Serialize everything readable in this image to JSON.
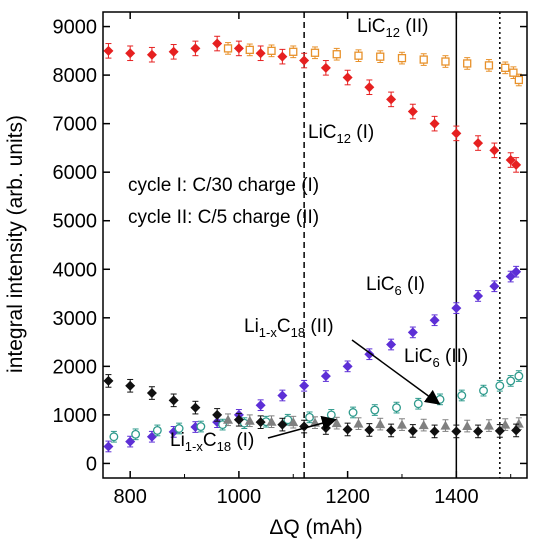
{
  "chart_data": {
    "type": "scatter",
    "xlabel": "ΔQ (mAh)",
    "ylabel": "integral intensity (arb. units)",
    "xlim": [
      750,
      1530
    ],
    "ylim": [
      -300,
      9300
    ],
    "xticks": [
      800,
      1000,
      1200,
      1400
    ],
    "yticks": [
      0,
      1000,
      2000,
      3000,
      4000,
      5000,
      6000,
      7000,
      8000,
      9000
    ],
    "vertical_lines": [
      {
        "x": 1120,
        "style": "dashed"
      },
      {
        "x": 1400,
        "style": "solid"
      },
      {
        "x": 1480,
        "style": "dotted"
      }
    ],
    "annotations": {
      "cycle_i": "cycle I:  C/30 charge (I)",
      "cycle_ii": "cycle II: C/5 charge (II)",
      "lic12_ii": {
        "main": "LiC",
        "sub": "12",
        "tail": " (II)"
      },
      "lic12_i": {
        "main": "LiC",
        "sub": "12",
        "tail": " (I)"
      },
      "lic6_i": {
        "main": "LiC",
        "sub": "6",
        "tail": " (I)"
      },
      "lic6_ii": {
        "main": "LiC",
        "sub": "6",
        "tail": " (II)"
      },
      "li1xc18_ii": {
        "a": "Li",
        "sub1": "1-x",
        "b": "C",
        "sub2": "18",
        "tail": " (II)"
      },
      "li1xc18_i": {
        "a": "Li",
        "sub1": "1-x",
        "b": "C",
        "sub2": "18",
        "tail": " (I)"
      }
    },
    "series": [
      {
        "key": "lic12_ii",
        "color": "#e8912a",
        "marker": "open-square",
        "x": [
          980,
          1020,
          1060,
          1100,
          1140,
          1180,
          1220,
          1260,
          1300,
          1340,
          1380,
          1420,
          1460,
          1490,
          1505,
          1515
        ],
        "y": [
          8550,
          8520,
          8500,
          8480,
          8460,
          8430,
          8400,
          8380,
          8350,
          8320,
          8280,
          8240,
          8200,
          8150,
          8050,
          7900
        ],
        "err": 120
      },
      {
        "key": "lic12_i",
        "color": "#e62020",
        "marker": "filled-diamond",
        "x": [
          760,
          800,
          840,
          880,
          920,
          960,
          1000,
          1040,
          1080,
          1120,
          1160,
          1200,
          1240,
          1280,
          1320,
          1360,
          1400,
          1440,
          1470,
          1500,
          1510
        ],
        "y": [
          8500,
          8450,
          8420,
          8480,
          8550,
          8650,
          8550,
          8450,
          8380,
          8300,
          8150,
          7950,
          7750,
          7500,
          7250,
          7000,
          6800,
          6600,
          6450,
          6250,
          6150
        ],
        "err": 150
      },
      {
        "key": "lic6_i",
        "color": "#5d2fd6",
        "marker": "filled-diamond",
        "x": [
          760,
          800,
          840,
          880,
          920,
          960,
          1000,
          1040,
          1080,
          1120,
          1160,
          1200,
          1240,
          1280,
          1320,
          1360,
          1400,
          1440,
          1470,
          1500,
          1510
        ],
        "y": [
          350,
          450,
          550,
          650,
          750,
          850,
          1000,
          1200,
          1400,
          1600,
          1800,
          2000,
          2250,
          2450,
          2700,
          2950,
          3200,
          3450,
          3650,
          3850,
          3950
        ],
        "err": 110
      },
      {
        "key": "lic6_ii",
        "color": "#2e9a8c",
        "marker": "open-circle",
        "x": [
          770,
          810,
          850,
          890,
          930,
          970,
          1010,
          1050,
          1090,
          1130,
          1170,
          1210,
          1250,
          1290,
          1330,
          1370,
          1410,
          1450,
          1480,
          1500,
          1515
        ],
        "y": [
          550,
          600,
          680,
          720,
          760,
          800,
          830,
          860,
          900,
          950,
          1000,
          1050,
          1100,
          1150,
          1230,
          1320,
          1400,
          1500,
          1600,
          1700,
          1800
        ],
        "err": 110
      },
      {
        "key": "li1xc18_ii",
        "color": "#808080",
        "marker": "filled-triangle",
        "x": [
          980,
          1020,
          1060,
          1100,
          1140,
          1180,
          1220,
          1260,
          1300,
          1340,
          1380,
          1420,
          1460,
          1490,
          1515
        ],
        "y": [
          900,
          880,
          860,
          850,
          840,
          830,
          820,
          810,
          800,
          790,
          780,
          770,
          780,
          800,
          820
        ],
        "err": 120
      },
      {
        "key": "li1xc18_i",
        "color": "#111111",
        "marker": "filled-diamond",
        "x": [
          760,
          800,
          840,
          880,
          920,
          960,
          1000,
          1040,
          1080,
          1120,
          1160,
          1200,
          1240,
          1280,
          1320,
          1360,
          1400,
          1440,
          1480,
          1510
        ],
        "y": [
          1700,
          1600,
          1450,
          1300,
          1150,
          1000,
          900,
          850,
          800,
          760,
          730,
          700,
          690,
          680,
          670,
          660,
          660,
          660,
          670,
          680
        ],
        "err": 130
      }
    ]
  }
}
